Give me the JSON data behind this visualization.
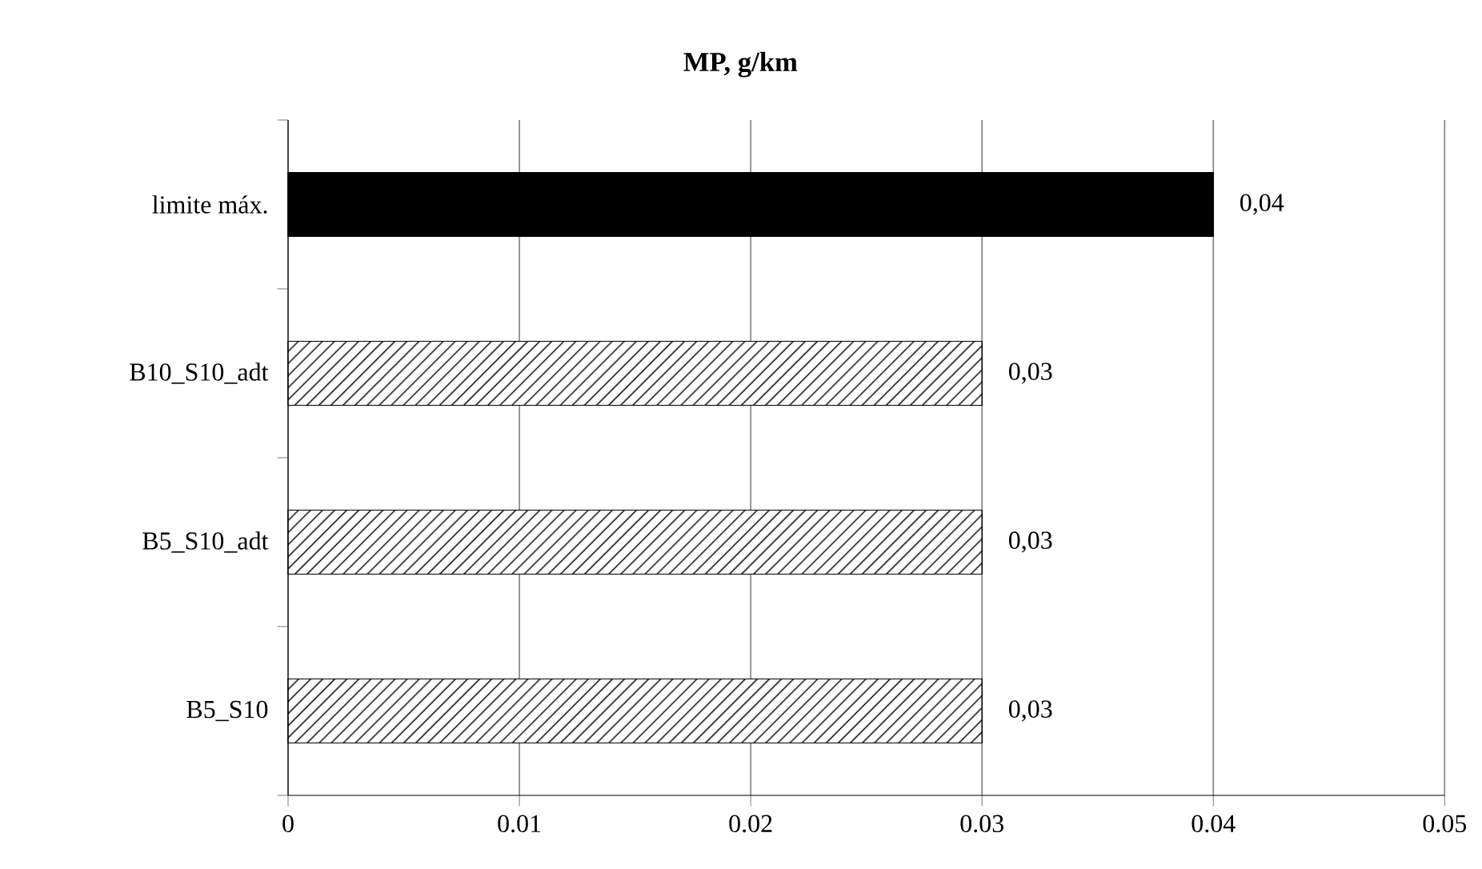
{
  "chart_data": {
    "type": "bar",
    "orientation": "horizontal",
    "title": "MP, g/km",
    "categories": [
      "limite máx.",
      "B10_S10_adt",
      "B5_S10_adt",
      "B5_S10"
    ],
    "values": [
      0.04,
      0.03,
      0.03,
      0.03
    ],
    "colors": [
      "#000000",
      "#ffffff",
      "#ffffff",
      "#ffffff"
    ],
    "value_labels": [
      "0,04",
      "0,03",
      "0,03",
      "0,03"
    ],
    "xlim": [
      0,
      0.05
    ],
    "xticks": [
      0,
      0.01,
      0.02,
      0.03,
      0.04,
      0.05
    ],
    "grid": "x"
  }
}
